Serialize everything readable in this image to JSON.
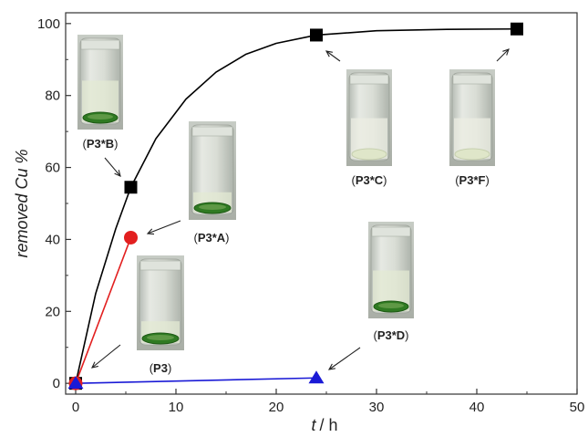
{
  "chart_data": {
    "type": "line",
    "xlabel_var": "t",
    "xlabel_unit": "/ h",
    "ylabel": "removed Cu %",
    "xlim": [
      -1,
      50
    ],
    "ylim": [
      -3,
      103
    ],
    "xticks": [
      0,
      10,
      20,
      30,
      40,
      50
    ],
    "yticks": [
      0,
      20,
      40,
      60,
      80,
      100
    ],
    "grid": false,
    "series": [
      {
        "color": "#000000",
        "marker": "square",
        "points": [
          [
            0,
            0
          ],
          [
            5.5,
            54.5
          ],
          [
            24,
            96.8
          ],
          [
            44,
            98.5
          ]
        ],
        "curve": [
          [
            0,
            0
          ],
          [
            2,
            25
          ],
          [
            4,
            43
          ],
          [
            5.5,
            54.5
          ],
          [
            8,
            68
          ],
          [
            11,
            79
          ],
          [
            14,
            86.5
          ],
          [
            17,
            91.5
          ],
          [
            20,
            94.5
          ],
          [
            24,
            96.8
          ],
          [
            30,
            98
          ],
          [
            37,
            98.4
          ],
          [
            44,
            98.5
          ]
        ]
      },
      {
        "color": "#e21f1f",
        "marker": "circle",
        "points": [
          [
            0,
            0
          ],
          [
            5.5,
            40.5
          ]
        ]
      },
      {
        "color": "#1a1ad6",
        "marker": "triangle",
        "points": [
          [
            0,
            0
          ],
          [
            24,
            1.5
          ]
        ]
      }
    ],
    "annotations": [
      {
        "label_prefix": "(",
        "label_bold": "P3*B",
        "label_suffix": ")"
      },
      {
        "label_prefix": "(",
        "label_bold": "P3*A",
        "label_suffix": ")"
      },
      {
        "label_prefix": "(",
        "label_bold": "P3",
        "label_suffix": ")"
      },
      {
        "label_prefix": "(",
        "label_bold": "P3*C",
        "label_suffix": ")"
      },
      {
        "label_prefix": "(",
        "label_bold": "P3*F",
        "label_suffix": ")"
      },
      {
        "label_prefix": "(",
        "label_bold": "P3*D",
        "label_suffix": ")"
      }
    ]
  }
}
